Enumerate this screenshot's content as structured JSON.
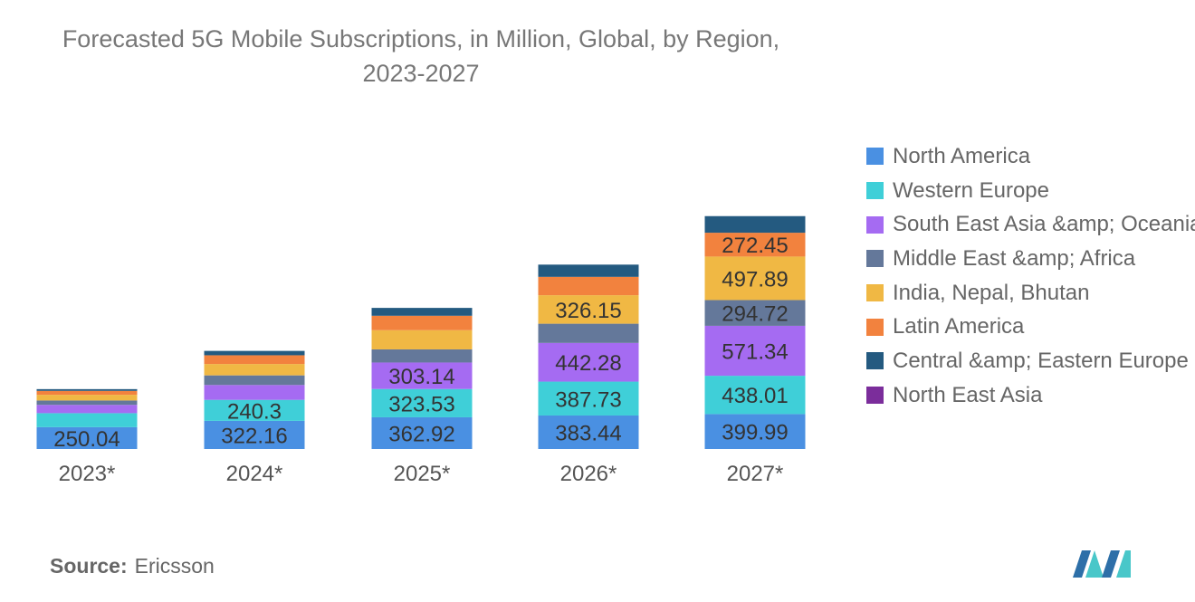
{
  "title": "Forecasted 5G Mobile Subscriptions, in Million, Global, by Region, 2023-2027",
  "source": {
    "label": "Source:",
    "value": "Ericsson"
  },
  "logo_icon": "mordor-intelligence-logo-icon",
  "chart_data": {
    "type": "bar",
    "stacked": true,
    "title": "Forecasted 5G Mobile Subscriptions, in Million, Global, by Region, 2023-2027",
    "xlabel": "",
    "ylabel": "",
    "categories": [
      "2023*",
      "2024*",
      "2025*",
      "2026*",
      "2027*"
    ],
    "ylim": [
      0,
      2900
    ],
    "grid": false,
    "legend_position": "right",
    "series": [
      {
        "name": "North America",
        "color": "#4a90e2",
        "values": [
          250.04,
          322.16,
          362.92,
          383.44,
          399.99
        ],
        "labels": [
          "250.04",
          "322.16",
          "362.92",
          "383.44",
          "399.99"
        ]
      },
      {
        "name": "Western Europe",
        "color": "#3fcfd8",
        "values": [
          160,
          240.3,
          323.53,
          387.73,
          438.01
        ],
        "labels": [
          "",
          "240.3",
          "323.53",
          "387.73",
          "438.01"
        ]
      },
      {
        "name": "South East Asia &amp; Oceania",
        "color": "#a56bf2",
        "values": [
          95,
          170,
          303.14,
          442.28,
          571.34
        ],
        "labels": [
          "",
          "",
          "303.14",
          "442.28",
          "571.34"
        ]
      },
      {
        "name": "Middle East &amp; Africa",
        "color": "#64789a",
        "values": [
          50,
          110,
          150,
          220,
          294.72
        ],
        "labels": [
          "",
          "",
          "",
          "",
          "294.72"
        ]
      },
      {
        "name": "India, Nepal, Bhutan",
        "color": "#f0b844",
        "values": [
          65,
          130,
          220,
          326.15,
          497.89
        ],
        "labels": [
          "",
          "",
          "",
          "326.15",
          "497.89"
        ]
      },
      {
        "name": "Latin America",
        "color": "#f2823e",
        "values": [
          45,
          100,
          165,
          210,
          272.45
        ],
        "labels": [
          "",
          "",
          "",
          "",
          "272.45"
        ]
      },
      {
        "name": "Central &amp; Eastern Europe",
        "color": "#245a80",
        "values": [
          20,
          50,
          90,
          140,
          190
        ],
        "labels": [
          "",
          "",
          "",
          "",
          ""
        ]
      },
      {
        "name": "North East Asia",
        "color": "#7b2d9b",
        "values": [
          0,
          0,
          0,
          0,
          0
        ],
        "labels": [
          "",
          "",
          "",
          "",
          ""
        ]
      }
    ]
  }
}
